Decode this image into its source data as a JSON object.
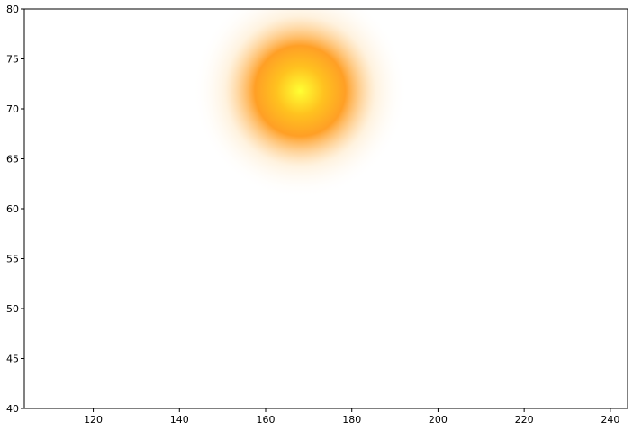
{
  "chart_data": {
    "type": "heatmap",
    "title": "",
    "xlabel": "",
    "ylabel": "",
    "xlim": [
      104,
      244
    ],
    "ylim": [
      40,
      80
    ],
    "x_ticks": [
      120,
      140,
      160,
      180,
      200,
      220,
      240
    ],
    "y_ticks": [
      40,
      45,
      50,
      55,
      60,
      65,
      70,
      75,
      80
    ],
    "grid": false,
    "hotspots": [
      {
        "x": 168,
        "y": 71.8,
        "spread_x": 9,
        "spread_y": 7,
        "colors": {
          "core": "#ffff33",
          "mid": "#ffc21f",
          "outer": "#ff9a1a",
          "edge": "#ffe3b8"
        }
      }
    ]
  }
}
